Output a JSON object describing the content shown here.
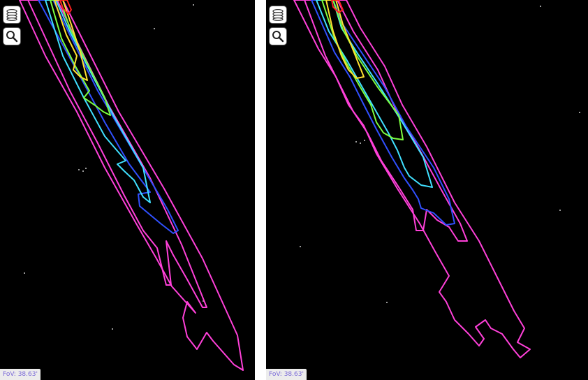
{
  "panels": [
    {
      "id": "left",
      "fov": {
        "label": "FoV:",
        "value": "38.63'"
      },
      "contours": [
        {
          "color": "#ff40d9",
          "points": [
            [
              28,
              0
            ],
            [
              90,
              0
            ],
            [
              120,
              60
            ],
            [
              170,
              160
            ],
            [
              235,
              270
            ],
            [
              290,
              370
            ],
            [
              340,
              480
            ],
            [
              348,
              530
            ],
            [
              335,
              522
            ],
            [
              305,
              488
            ],
            [
              296,
              476
            ],
            [
              282,
              500
            ],
            [
              268,
              482
            ],
            [
              262,
              455
            ],
            [
              268,
              432
            ],
            [
              280,
              448
            ],
            [
              246,
              410
            ],
            [
              224,
              370
            ],
            [
              195,
              320
            ],
            [
              150,
              240
            ],
            [
              110,
              160
            ],
            [
              65,
              80
            ],
            [
              28,
              0
            ]
          ]
        },
        {
          "color": "#ff40d9",
          "points": [
            [
              40,
              0
            ],
            [
              82,
              0
            ],
            [
              108,
              55
            ],
            [
              155,
              150
            ],
            [
              215,
              255
            ],
            [
              260,
              350
            ],
            [
              296,
              440
            ],
            [
              290,
              440
            ],
            [
              268,
              400
            ],
            [
              248,
              365
            ],
            [
              238,
              345
            ],
            [
              245,
              408
            ],
            [
              238,
              408
            ],
            [
              225,
              355
            ],
            [
              205,
              330
            ],
            [
              178,
              280
            ],
            [
              140,
              205
            ],
            [
              100,
              130
            ],
            [
              70,
              65
            ],
            [
              40,
              0
            ]
          ]
        },
        {
          "color": "#3050ff",
          "points": [
            [
              55,
              0
            ],
            [
              76,
              0
            ],
            [
              100,
              50
            ],
            [
              140,
              130
            ],
            [
              190,
              215
            ],
            [
              240,
              300
            ],
            [
              255,
              330
            ],
            [
              248,
              334
            ],
            [
              230,
              320
            ],
            [
              200,
              295
            ],
            [
              198,
              278
            ],
            [
              215,
              275
            ],
            [
              185,
              235
            ],
            [
              150,
              175
            ],
            [
              115,
              110
            ],
            [
              82,
              50
            ],
            [
              55,
              0
            ]
          ]
        },
        {
          "color": "#40e0ff",
          "points": [
            [
              65,
              0
            ],
            [
              80,
              0
            ],
            [
              100,
              45
            ],
            [
              128,
              100
            ],
            [
              165,
              170
            ],
            [
              205,
              240
            ],
            [
              215,
              290
            ],
            [
              205,
              282
            ],
            [
              192,
              258
            ],
            [
              178,
              245
            ],
            [
              168,
              235
            ],
            [
              180,
              230
            ],
            [
              150,
              195
            ],
            [
              120,
              140
            ],
            [
              90,
              80
            ],
            [
              65,
              0
            ]
          ]
        },
        {
          "color": "#7cff40",
          "points": [
            [
              72,
              0
            ],
            [
              86,
              0
            ],
            [
              100,
              40
            ],
            [
              122,
              85
            ],
            [
              150,
              140
            ],
            [
              158,
              165
            ],
            [
              148,
              160
            ],
            [
              135,
              150
            ],
            [
              120,
              140
            ],
            [
              128,
              130
            ],
            [
              108,
              95
            ],
            [
              88,
              55
            ],
            [
              72,
              0
            ]
          ]
        },
        {
          "color": "#ffe030",
          "points": [
            [
              78,
              0
            ],
            [
              90,
              0
            ],
            [
              102,
              35
            ],
            [
              115,
              75
            ],
            [
              125,
              115
            ],
            [
              115,
              110
            ],
            [
              105,
              100
            ],
            [
              110,
              80
            ],
            [
              95,
              50
            ],
            [
              78,
              0
            ]
          ]
        },
        {
          "color": "#ff2020",
          "points": [
            [
              86,
              0
            ],
            [
              96,
              0
            ],
            [
              102,
              14
            ],
            [
              98,
              20
            ],
            [
              90,
              12
            ],
            [
              86,
              0
            ]
          ]
        }
      ],
      "noise": [
        [
          112,
          242
        ],
        [
          118,
          244
        ],
        [
          122,
          240
        ],
        [
          160,
          470
        ],
        [
          34,
          390
        ],
        [
          220,
          40
        ],
        [
          276,
          6
        ],
        [
          290,
          430
        ]
      ]
    },
    {
      "id": "right",
      "fov": {
        "label": "FoV:",
        "value": "38.63'"
      },
      "contours": [
        {
          "color": "#ff40d9",
          "points": [
            [
              40,
              0
            ],
            [
              115,
              0
            ],
            [
              135,
              40
            ],
            [
              170,
              95
            ],
            [
              195,
              150
            ],
            [
              230,
              210
            ],
            [
              270,
              290
            ],
            [
              305,
              345
            ],
            [
              330,
              395
            ],
            [
              355,
              445
            ],
            [
              370,
              470
            ],
            [
              360,
              490
            ],
            [
              378,
              500
            ],
            [
              364,
              512
            ],
            [
              354,
              500
            ],
            [
              338,
              478
            ],
            [
              322,
              470
            ],
            [
              314,
              458
            ],
            [
              300,
              468
            ],
            [
              312,
              485
            ],
            [
              305,
              495
            ],
            [
              290,
              478
            ],
            [
              270,
              458
            ],
            [
              258,
              432
            ],
            [
              248,
              418
            ],
            [
              262,
              395
            ],
            [
              242,
              360
            ],
            [
              220,
              320
            ],
            [
              188,
              270
            ],
            [
              158,
              220
            ],
            [
              140,
              180
            ],
            [
              118,
              150
            ],
            [
              100,
              110
            ],
            [
              75,
              70
            ],
            [
              40,
              0
            ]
          ]
        },
        {
          "color": "#ff40d9",
          "points": [
            [
              55,
              0
            ],
            [
              102,
              0
            ],
            [
              125,
              45
            ],
            [
              160,
              100
            ],
            [
              185,
              155
            ],
            [
              220,
              215
            ],
            [
              250,
              270
            ],
            [
              278,
              320
            ],
            [
              288,
              345
            ],
            [
              275,
              345
            ],
            [
              262,
              325
            ],
            [
              245,
              315
            ],
            [
              230,
              300
            ],
            [
              225,
              330
            ],
            [
              215,
              330
            ],
            [
              210,
              300
            ],
            [
              190,
              268
            ],
            [
              165,
              230
            ],
            [
              145,
              190
            ],
            [
              125,
              160
            ],
            [
              105,
              120
            ],
            [
              85,
              80
            ],
            [
              55,
              0
            ]
          ]
        },
        {
          "color": "#3050ff",
          "points": [
            [
              65,
              0
            ],
            [
              96,
              0
            ],
            [
              110,
              35
            ],
            [
              140,
              80
            ],
            [
              170,
              125
            ],
            [
              200,
              180
            ],
            [
              240,
              240
            ],
            [
              262,
              285
            ],
            [
              270,
              320
            ],
            [
              258,
              322
            ],
            [
              240,
              305
            ],
            [
              222,
              298
            ],
            [
              218,
              285
            ],
            [
              210,
              272
            ],
            [
              198,
              255
            ],
            [
              180,
              225
            ],
            [
              158,
              185
            ],
            [
              140,
              150
            ],
            [
              120,
              110
            ],
            [
              98,
              75
            ],
            [
              65,
              0
            ]
          ]
        },
        {
          "color": "#40e0ff",
          "points": [
            [
              72,
              0
            ],
            [
              96,
              0
            ],
            [
              108,
              40
            ],
            [
              130,
              75
            ],
            [
              160,
              120
            ],
            [
              195,
              175
            ],
            [
              225,
              225
            ],
            [
              238,
              268
            ],
            [
              222,
              265
            ],
            [
              205,
              252
            ],
            [
              198,
              240
            ],
            [
              188,
              215
            ],
            [
              175,
              190
            ],
            [
              155,
              155
            ],
            [
              135,
              120
            ],
            [
              115,
              85
            ],
            [
              90,
              45
            ],
            [
              72,
              0
            ]
          ]
        },
        {
          "color": "#7cff40",
          "points": [
            [
              80,
              0
            ],
            [
              96,
              0
            ],
            [
              110,
              42
            ],
            [
              130,
              80
            ],
            [
              160,
              125
            ],
            [
              190,
              165
            ],
            [
              196,
              200
            ],
            [
              182,
              198
            ],
            [
              168,
              190
            ],
            [
              158,
              175
            ],
            [
              150,
              150
            ],
            [
              135,
              125
            ],
            [
              115,
              90
            ],
            [
              98,
              55
            ],
            [
              80,
              0
            ]
          ]
        },
        {
          "color": "#ffe030",
          "points": [
            [
              86,
              0
            ],
            [
              100,
              0
            ],
            [
              110,
              35
            ],
            [
              128,
              80
            ],
            [
              140,
              110
            ],
            [
              130,
              112
            ],
            [
              118,
              100
            ],
            [
              108,
              80
            ],
            [
              96,
              45
            ],
            [
              86,
              0
            ]
          ]
        },
        {
          "color": "#ff2020",
          "points": [
            [
              94,
              0
            ],
            [
              104,
              0
            ],
            [
              110,
              14
            ],
            [
              104,
              18
            ],
            [
              96,
              10
            ],
            [
              94,
              0
            ]
          ]
        }
      ],
      "noise": [
        [
          128,
          202
        ],
        [
          134,
          204
        ],
        [
          140,
          200
        ],
        [
          48,
          352
        ],
        [
          172,
          432
        ],
        [
          448,
          160
        ],
        [
          392,
          8
        ],
        [
          420,
          300
        ]
      ]
    }
  ]
}
